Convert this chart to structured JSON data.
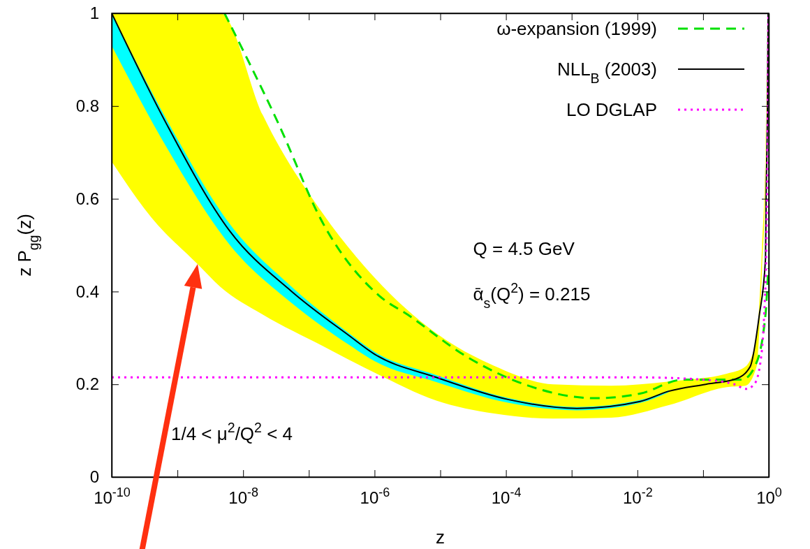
{
  "chart_data": {
    "type": "line",
    "xlabel": "z",
    "ylabel": "z P$_{gg}$(z)",
    "log": "x",
    "grid": false,
    "legend": "top right",
    "xlim": [
      1e-10,
      1
    ],
    "ylim": [
      0,
      1
    ],
    "xticks": [
      {
        "value": 1e-10,
        "label": "10$^{-10}$"
      },
      {
        "value": 1e-09,
        "label": null
      },
      {
        "value": 1e-08,
        "label": "10$^{-8}$"
      },
      {
        "value": 1e-07,
        "label": null
      },
      {
        "value": 1e-06,
        "label": "10$^{-6}$"
      },
      {
        "value": 1e-05,
        "label": null
      },
      {
        "value": 0.0001,
        "label": "10$^{-4}$"
      },
      {
        "value": 0.001,
        "label": null
      },
      {
        "value": 0.01,
        "label": "10$^{-2}$"
      },
      {
        "value": 0.1,
        "label": null
      },
      {
        "value": 1,
        "label": "10$^{0}$"
      }
    ],
    "yticks": [
      0,
      0.2,
      0.4,
      0.6,
      0.8,
      1
    ],
    "series": [
      {
        "type": "line",
        "color": "#ffff00",
        "values": [
          null,
          null,
          null,
          null,
          null,
          null,
          null,
          null,
          null,
          null,
          null,
          null,
          null,
          null,
          null,
          null,
          null,
          null
        ],
        "x": [
          1e-10,
          4e-10,
          2e-09,
          4.5e-09,
          2e-08,
          1.6e-07,
          1e-06,
          8.7e-06,
          6.6e-05,
          0.00052,
          0.004,
          0.03,
          0.23,
          0.44,
          0.65,
          0.79,
          0.89,
          0.955
        ],
        "lower": [
          0.68,
          0.56,
          0.46,
          0.41,
          0.35,
          0.283,
          0.225,
          0.165,
          0.137,
          0.126,
          0.128,
          0.155,
          0.194,
          0.197,
          0.238,
          0.45,
          0.65,
          1
        ],
        "upper": [
          1,
          1,
          1,
          1,
          0.78,
          0.57,
          0.43,
          0.31,
          0.24,
          0.2,
          0.197,
          0.206,
          0.223,
          0.238,
          0.3,
          0.5,
          0.7,
          1
        ]
      },
      {
        "type": "line",
        "color": "#00ffff",
        "values": [
          null,
          null,
          null,
          null,
          null,
          null,
          null,
          null,
          null,
          null,
          null
        ],
        "x": [
          1e-10,
          6.9e-10,
          6.3e-09,
          5.5e-08,
          4.1e-07,
          1e-06,
          8.7e-06,
          0.00011,
          0.0012,
          0.011,
          0.03
        ],
        "lower": [
          0.93,
          0.71,
          0.5,
          0.375,
          0.285,
          0.25,
          0.205,
          0.16,
          0.144,
          0.16,
          0.183
        ],
        "upper": [
          1,
          0.77,
          0.545,
          0.41,
          0.31,
          0.27,
          0.22,
          0.17,
          0.151,
          0.166,
          0.187
        ]
      },
      {
        "name": "ω-expansion (1999)",
        "color": "#00e000",
        "line_style": "dashed",
        "x": [
          5.2e-09,
          3.5e-08,
          1.6e-07,
          1.2e-06,
          3.2e-06,
          2.5e-05,
          0.00019,
          0.0023,
          0.011,
          0.05,
          0.14,
          0.39,
          0.62,
          0.89,
          0.98
        ],
        "values": [
          1,
          0.76,
          0.55,
          0.39,
          0.35,
          0.26,
          0.2,
          0.17,
          0.18,
          0.21,
          0.21,
          0.21,
          0.24,
          0.35,
          0.45
        ]
      },
      {
        "name": "NLL$_{B}$ (2003)",
        "color": "#000000",
        "line_style": "solid",
        "x": [
          1e-10,
          6.9e-10,
          6.3e-09,
          5.5e-08,
          4.1e-07,
          1e-06,
          8.7e-06,
          0.00011,
          0.0012,
          0.011,
          0.03,
          0.11,
          0.32,
          0.52,
          0.71,
          0.89,
          0.91,
          0.955,
          0.977
        ],
        "values": [
          1,
          0.76,
          0.53,
          0.4,
          0.305,
          0.265,
          0.215,
          0.167,
          0.148,
          0.163,
          0.185,
          0.2,
          0.212,
          0.238,
          0.345,
          0.47,
          0.6,
          0.8,
          1
        ]
      },
      {
        "name": "LO DGLAP",
        "color": "#ff00ff",
        "line_style": "dotted",
        "x": [
          1e-10,
          0.01,
          0.1,
          0.3,
          0.45,
          0.6,
          0.75,
          0.85,
          0.92,
          0.96,
          0.985
        ],
        "values": [
          0.215,
          0.215,
          0.21,
          0.2,
          0.19,
          0.2,
          0.25,
          0.35,
          0.5,
          0.75,
          1
        ]
      }
    ],
    "annotations": [
      "Q = 4.5 GeV",
      "ᾱ$_{s}$(Q$^{2}$) = 0.215",
      "1/4 < μ$^{2}$/Q$^{2}$ < 4"
    ]
  }
}
